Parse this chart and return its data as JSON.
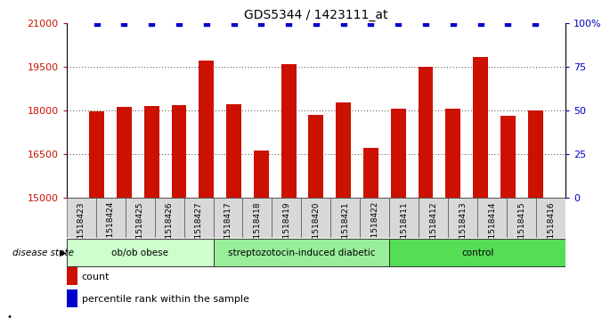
{
  "title": "GDS5344 / 1423111_at",
  "samples": [
    "GSM1518423",
    "GSM1518424",
    "GSM1518425",
    "GSM1518426",
    "GSM1518427",
    "GSM1518417",
    "GSM1518418",
    "GSM1518419",
    "GSM1518420",
    "GSM1518421",
    "GSM1518422",
    "GSM1518411",
    "GSM1518412",
    "GSM1518413",
    "GSM1518414",
    "GSM1518415",
    "GSM1518416"
  ],
  "counts": [
    17950,
    18100,
    18150,
    18170,
    19700,
    18200,
    16600,
    19580,
    17850,
    18280,
    16700,
    18050,
    19500,
    18050,
    19820,
    17800,
    17980
  ],
  "groups": [
    {
      "label": "ob/ob obese",
      "start": 0,
      "end": 5,
      "color": "#ccffcc"
    },
    {
      "label": "streptozotocin-induced diabetic",
      "start": 5,
      "end": 11,
      "color": "#99ee99"
    },
    {
      "label": "control",
      "start": 11,
      "end": 17,
      "color": "#55dd55"
    }
  ],
  "bar_color": "#cc1100",
  "percentile_color": "#0000cc",
  "ymin": 15000,
  "ymax": 21000,
  "yticks_left": [
    15000,
    16500,
    18000,
    19500,
    21000
  ],
  "yticks_right": [
    0,
    25,
    50,
    75,
    100
  ],
  "ytick_labels_right": [
    "0",
    "25",
    "50",
    "75",
    "100%"
  ],
  "grid_values": [
    16500,
    18000,
    19500
  ],
  "plot_bg": "#f0f0f0",
  "disease_state_label": "disease state",
  "legend_count_label": "count",
  "legend_percentile_label": "percentile rank within the sample",
  "pct_yval": 100
}
